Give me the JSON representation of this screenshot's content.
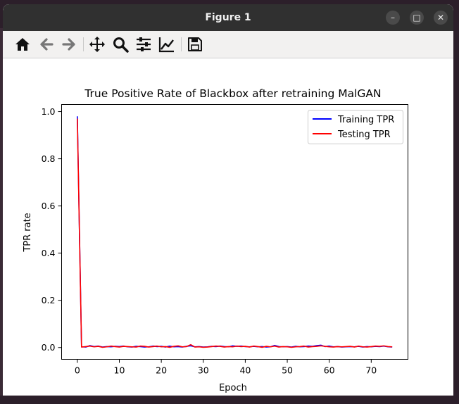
{
  "window": {
    "title": "Figure 1",
    "buttons": {
      "minimize": "–",
      "maximize": "□",
      "close": "✕"
    }
  },
  "toolbar": {
    "tools": [
      "home-icon",
      "back-arrow-icon",
      "forward-arrow-icon",
      "pan-icon",
      "zoom-icon",
      "subplots-config-icon",
      "edit-axis-icon",
      "save-icon"
    ]
  },
  "chart_data": {
    "type": "line",
    "title": "True Positive Rate of Blackbox after retraining MalGAN",
    "xlabel": "Epoch",
    "ylabel": "TPR rate",
    "xlim": [
      -3.75,
      78.75
    ],
    "ylim": [
      -0.05,
      1.03
    ],
    "xticks": [
      0,
      10,
      20,
      30,
      40,
      50,
      60,
      70
    ],
    "yticks": [
      0.0,
      0.2,
      0.4,
      0.6,
      0.8,
      1.0
    ],
    "xtick_labels": [
      "0",
      "10",
      "20",
      "30",
      "40",
      "50",
      "60",
      "70"
    ],
    "ytick_labels": [
      "0.0",
      "0.2",
      "0.4",
      "0.6",
      "0.8",
      "1.0"
    ],
    "legend_position": "upper right",
    "series": [
      {
        "name": "Training TPR",
        "color": "#0000ff",
        "x": [
          0,
          1,
          2,
          3,
          4,
          5,
          6,
          7,
          8,
          9,
          10,
          11,
          12,
          13,
          14,
          15,
          16,
          17,
          18,
          19,
          20,
          21,
          22,
          23,
          24,
          25,
          26,
          27,
          28,
          29,
          30,
          31,
          32,
          33,
          34,
          35,
          36,
          37,
          38,
          39,
          40,
          41,
          42,
          43,
          44,
          45,
          46,
          47,
          48,
          49,
          50,
          51,
          52,
          53,
          54,
          55,
          56,
          57,
          58,
          59,
          60,
          61,
          62,
          63,
          64,
          65,
          66,
          67,
          68,
          69,
          70,
          71,
          72,
          73,
          74,
          75
        ],
        "values": [
          0.98,
          0.003,
          0.002,
          0.008,
          0.004,
          0.006,
          0.002,
          0.004,
          0.003,
          0.005,
          0.004,
          0.006,
          0.003,
          0.002,
          0.005,
          0.004,
          0.002,
          0.003,
          0.006,
          0.004,
          0.005,
          0.002,
          0.006,
          0.003,
          0.004,
          0.002,
          0.005,
          0.007,
          0.003,
          0.004,
          0.002,
          0.003,
          0.005,
          0.004,
          0.006,
          0.004,
          0.003,
          0.007,
          0.005,
          0.006,
          0.004,
          0.003,
          0.005,
          0.003,
          0.004,
          0.002,
          0.003,
          0.009,
          0.004,
          0.003,
          0.004,
          0.002,
          0.005,
          0.003,
          0.004,
          0.006,
          0.005,
          0.008,
          0.01,
          0.004,
          0.006,
          0.003,
          0.004,
          0.002,
          0.003,
          0.004,
          0.003,
          0.005,
          0.002,
          0.004,
          0.003,
          0.005,
          0.004,
          0.006,
          0.003,
          0.002
        ]
      },
      {
        "name": "Testing TPR",
        "color": "#ff0000",
        "x": [
          0,
          1,
          2,
          3,
          4,
          5,
          6,
          7,
          8,
          9,
          10,
          11,
          12,
          13,
          14,
          15,
          16,
          17,
          18,
          19,
          20,
          21,
          22,
          23,
          24,
          25,
          26,
          27,
          28,
          29,
          30,
          31,
          32,
          33,
          34,
          35,
          36,
          37,
          38,
          39,
          40,
          41,
          42,
          43,
          44,
          45,
          46,
          47,
          48,
          49,
          50,
          51,
          52,
          53,
          54,
          55,
          56,
          57,
          58,
          59,
          60,
          61,
          62,
          63,
          64,
          65,
          66,
          67,
          68,
          69,
          70,
          71,
          72,
          73,
          74,
          75
        ],
        "values": [
          0.97,
          0.002,
          0.004,
          0.006,
          0.003,
          0.005,
          0.001,
          0.003,
          0.006,
          0.004,
          0.002,
          0.005,
          0.004,
          0.003,
          0.002,
          0.006,
          0.005,
          0.002,
          0.004,
          0.006,
          0.003,
          0.004,
          0.001,
          0.005,
          0.007,
          0.003,
          0.004,
          0.012,
          0.002,
          0.003,
          0.001,
          0.002,
          0.004,
          0.006,
          0.005,
          0.002,
          0.004,
          0.003,
          0.006,
          0.004,
          0.005,
          0.002,
          0.006,
          0.004,
          0.001,
          0.005,
          0.003,
          0.006,
          0.002,
          0.004,
          0.003,
          0.001,
          0.003,
          0.004,
          0.006,
          0.002,
          0.004,
          0.005,
          0.007,
          0.005,
          0.003,
          0.002,
          0.004,
          0.003,
          0.004,
          0.005,
          0.002,
          0.006,
          0.003,
          0.002,
          0.004,
          0.006,
          0.005,
          0.007,
          0.004,
          0.003
        ]
      }
    ]
  }
}
